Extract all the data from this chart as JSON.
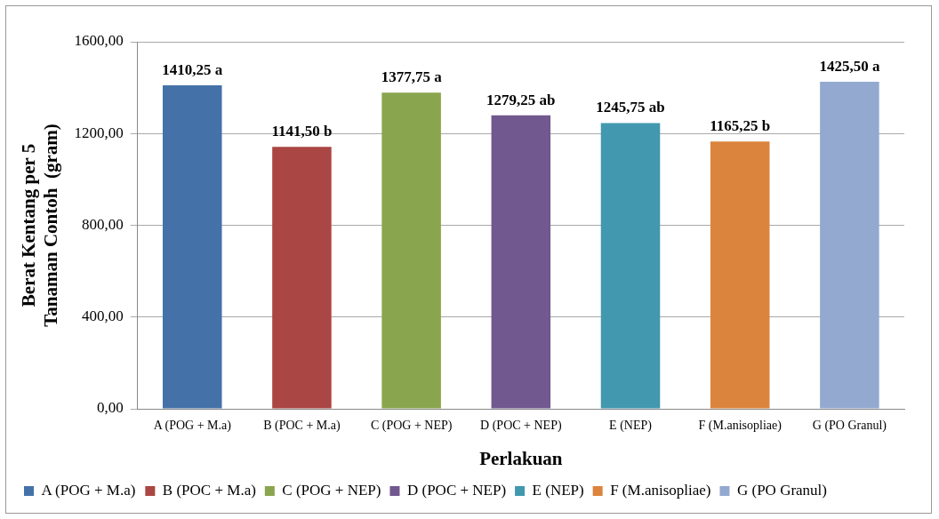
{
  "chart_data": {
    "type": "bar",
    "xlabel": "Perlakuan",
    "ylabel": "Berat Kentang per 5\nTanaman Contoh  (gram)",
    "categories": [
      "A (POG + M.a)",
      "B (POC + M.a)",
      "C (POG + NEP)",
      "D (POC + NEP)",
      "E (NEP)",
      "F (M.anisopliae)",
      "G (PO Granul)"
    ],
    "series": [
      {
        "name": "A (POG + M.a)",
        "color": "#4472a8",
        "values": [
          1410.25,
          null,
          null,
          null,
          null,
          null,
          null
        ],
        "value_labels": [
          "1410,25 a",
          null,
          null,
          null,
          null,
          null,
          null
        ]
      },
      {
        "name": "B (POC + M.a)",
        "color": "#aa4643",
        "values": [
          null,
          1141.5,
          null,
          null,
          null,
          null,
          null
        ],
        "value_labels": [
          null,
          "1141,50 b",
          null,
          null,
          null,
          null,
          null
        ]
      },
      {
        "name": "C (POG + NEP)",
        "color": "#89a54e",
        "values": [
          null,
          null,
          1377.75,
          null,
          null,
          null,
          null
        ],
        "value_labels": [
          null,
          null,
          "1377,75 a",
          null,
          null,
          null,
          null
        ]
      },
      {
        "name": "D (POC + NEP)",
        "color": "#71588f",
        "values": [
          null,
          null,
          null,
          1279.25,
          null,
          null,
          null
        ],
        "value_labels": [
          null,
          null,
          null,
          "1279,25 ab",
          null,
          null,
          null
        ]
      },
      {
        "name": "E (NEP)",
        "color": "#4198af",
        "values": [
          null,
          null,
          null,
          null,
          1245.75,
          null,
          null
        ],
        "value_labels": [
          null,
          null,
          null,
          null,
          "1245,75 ab",
          null,
          null
        ]
      },
      {
        "name": "F (M.anisopliae)",
        "color": "#db843d",
        "values": [
          null,
          null,
          null,
          null,
          null,
          1165.25,
          null
        ],
        "value_labels": [
          null,
          null,
          null,
          null,
          null,
          "1165,25 b",
          null
        ]
      },
      {
        "name": "G (PO Granul)",
        "color": "#93a9cf",
        "values": [
          null,
          null,
          null,
          null,
          null,
          null,
          1425.5
        ],
        "value_labels": [
          null,
          null,
          null,
          null,
          null,
          null,
          "1425,50 a"
        ]
      }
    ],
    "ylim": [
      0,
      1600
    ],
    "yticks": [
      {
        "value": 0,
        "label": "0,00"
      },
      {
        "value": 400,
        "label": "400,00"
      },
      {
        "value": 800,
        "label": "800,00"
      },
      {
        "value": 1200,
        "label": "1200,00"
      },
      {
        "value": 1600,
        "label": "1600,00"
      }
    ],
    "grid": "y",
    "legend": "bottom"
  }
}
